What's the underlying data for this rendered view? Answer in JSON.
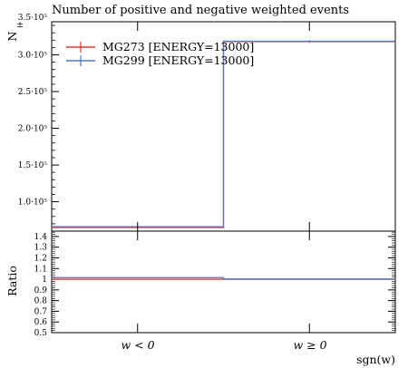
{
  "chart_data": {
    "type": "histogram",
    "title": "Number of positive and negative weighted events",
    "xlabel": "sgn(w)",
    "ylabel": "N",
    "ylabel_sub": "±",
    "categories": [
      "w < 0",
      "w ≥ 0"
    ],
    "main": {
      "ylim": [
        60000,
        345000
      ],
      "yticks": [
        {
          "value": 100000,
          "label": "1.0·10⁵"
        },
        {
          "value": 150000,
          "label": "1.5·10⁵"
        },
        {
          "value": 200000,
          "label": "2.0·10⁵"
        },
        {
          "value": 250000,
          "label": "2.5·10⁵"
        },
        {
          "value": 300000,
          "label": "3.0·10⁵"
        },
        {
          "value": 350000,
          "label": "3.5·10⁵"
        }
      ],
      "series": [
        {
          "name": "MG273 [ENERGY=13000]",
          "color": "#e8352a",
          "values": [
            65000,
            318000
          ]
        },
        {
          "name": "MG299 [ENERGY=13000]",
          "color": "#4a78c8",
          "values": [
            66000,
            318500
          ]
        }
      ]
    },
    "ratio": {
      "ylabel": "Ratio",
      "ylim": [
        0.5,
        1.45
      ],
      "yticks": [
        "0.5",
        "0.6",
        "0.7",
        "0.8",
        "0.9",
        "1",
        "1.1",
        "1.2",
        "1.3",
        "1.4"
      ],
      "series": [
        {
          "name": "MG273 [ENERGY=13000]",
          "color": "#e8352a",
          "values": [
            1.0,
            1.0
          ]
        },
        {
          "name": "MG299 [ENERGY=13000]",
          "color": "#4a78c8",
          "values": [
            1.015,
            1.002
          ]
        }
      ]
    }
  }
}
